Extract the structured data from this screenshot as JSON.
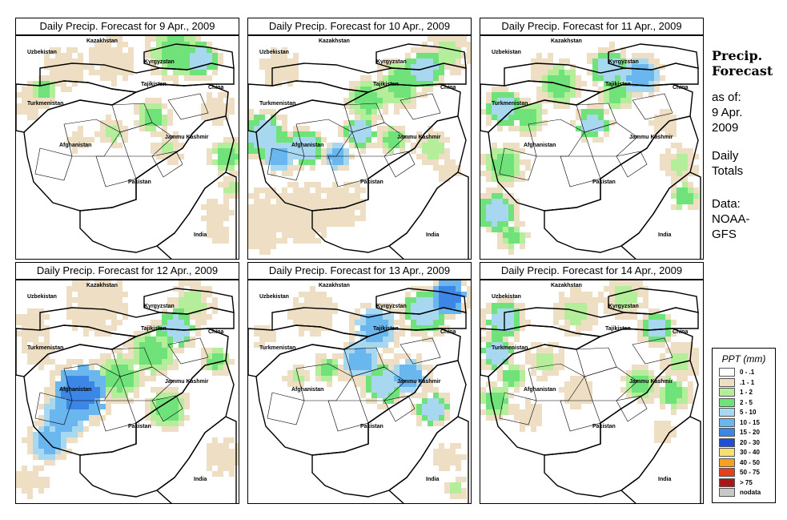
{
  "panels": [
    {
      "title": "Daily Precip. Forecast for  9 Apr., 2009",
      "scene": 0
    },
    {
      "title": "Daily Precip. Forecast for  10 Apr., 2009",
      "scene": 1
    },
    {
      "title": "Daily Precip. Forecast for  11 Apr., 2009",
      "scene": 2
    },
    {
      "title": "Daily Precip. Forecast for  12 Apr., 2009",
      "scene": 3
    },
    {
      "title": "Daily Precip. Forecast for  13 Apr., 2009",
      "scene": 4
    },
    {
      "title": "Daily Precip. Forecast for  14 Apr., 2009",
      "scene": 5
    }
  ],
  "place_labels": [
    "Kazakhstan",
    "Uzbekistan",
    "Kyrgyzstan",
    "Tajikistan",
    "China",
    "Turkmenistan",
    "Jammu Kashmir",
    "Afghanistan",
    "Pakistan",
    "India"
  ],
  "sidebar": {
    "title_line1": "Precip.",
    "title_line2": "Forecast",
    "asof_line1": "as of:",
    "asof_line2": "9 Apr.",
    "asof_line3": "2009",
    "totals_line1": "Daily",
    "totals_line2": "Totals",
    "data_line1": "Data:",
    "data_line2": "NOAA-",
    "data_line3": "GFS"
  },
  "legend": {
    "title": "PPT (mm)",
    "items": [
      {
        "label": "0 - .1",
        "color": "#ffffff"
      },
      {
        "label": ".1 - 1",
        "color": "#eedfc4"
      },
      {
        "label": "1 - 2",
        "color": "#b4ee9a"
      },
      {
        "label": "2 - 5",
        "color": "#6fe27a"
      },
      {
        "label": "5 - 10",
        "color": "#a8d8f0"
      },
      {
        "label": "10 - 15",
        "color": "#6ab6ee"
      },
      {
        "label": "15 - 20",
        "color": "#3c86e6"
      },
      {
        "label": "20 - 30",
        "color": "#1f4fd2"
      },
      {
        "label": "30 - 40",
        "color": "#f8e070"
      },
      {
        "label": "40 - 50",
        "color": "#f7a020"
      },
      {
        "label": "50 - 75",
        "color": "#e4401c"
      },
      {
        "label": "> 75",
        "color": "#a81818"
      },
      {
        "label": "nodata",
        "color": "#c8c8c8"
      }
    ]
  }
}
